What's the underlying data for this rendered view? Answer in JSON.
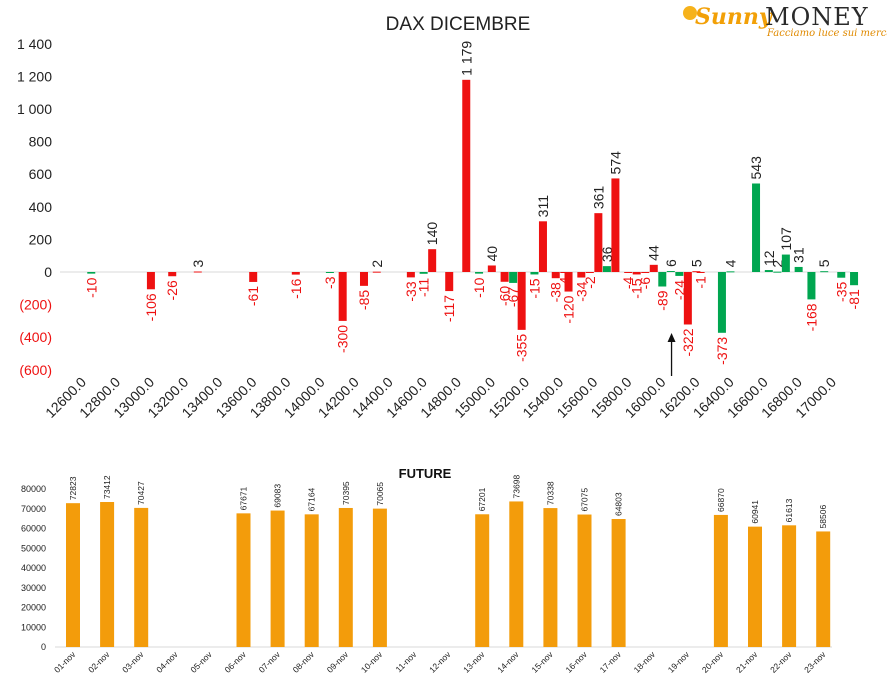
{
  "logo": {
    "brand_left": "Sunny",
    "brand_right": "MONEY",
    "tagline": "Facciamo luce sui mercati",
    "colors": {
      "orange": "#f2a007",
      "dark": "#2a2a2a"
    }
  },
  "chart_data": [
    {
      "type": "bar",
      "title": "DAX DICEMBRE",
      "ylim": [
        -600,
        1400
      ],
      "yticks": [
        -600,
        -400,
        -200,
        0,
        200,
        400,
        600,
        800,
        1000,
        1200,
        1400
      ],
      "ytick_labels": [
        "(600)",
        "(400)",
        "(200)",
        "0",
        "200",
        "400",
        "600",
        "800",
        "1 000",
        "1 200",
        "1 400"
      ],
      "x_range": [
        12600,
        17000
      ],
      "xticks": [
        12600,
        12800,
        13000,
        13200,
        13400,
        13600,
        13800,
        14000,
        14200,
        14400,
        14600,
        14800,
        15000,
        15200,
        15400,
        15600,
        15800,
        16000,
        16200,
        16400,
        16600,
        16800,
        17000
      ],
      "xtick_labels": [
        "12600.0",
        "12800.0",
        "13000.0",
        "13200.0",
        "13400.0",
        "13600.0",
        "13800.0",
        "14000.0",
        "14200.0",
        "14400.0",
        "14600.0",
        "14800.0",
        "15000.0",
        "15200.0",
        "15400.0",
        "15600.0",
        "15800.0",
        "16000.0",
        "16200.0",
        "16400.0",
        "16600.0",
        "16800.0",
        "17000.0"
      ],
      "grid": false,
      "colors": {
        "red": "#ee1111",
        "green": "#00a650",
        "label_neg": "#ee1111",
        "label_pos": "#222222"
      },
      "marker_arrow_at": 16000,
      "series": [
        {
          "values": [
            {
              "x": 12625,
              "v": -10,
              "c": "green",
              "label": "-10"
            },
            {
              "x": 12975,
              "v": -106,
              "c": "red",
              "label": "-106"
            },
            {
              "x": 13100,
              "v": -26,
              "c": "red",
              "label": "-26"
            },
            {
              "x": 13250,
              "v": 3,
              "c": "red",
              "label": "3"
            },
            {
              "x": 13575,
              "v": -61,
              "c": "red",
              "label": "-61"
            },
            {
              "x": 13825,
              "v": -16,
              "c": "red",
              "label": "-16"
            },
            {
              "x": 14025,
              "v": -3,
              "c": "green",
              "label": "-3"
            },
            {
              "x": 14100,
              "v": -300,
              "c": "red",
              "label": "-300"
            },
            {
              "x": 14225,
              "v": -85,
              "c": "red",
              "label": "-85"
            },
            {
              "x": 14300,
              "v": 2,
              "c": "red",
              "label": "2"
            },
            {
              "x": 14500,
              "v": -33,
              "c": "red",
              "label": "-33"
            },
            {
              "x": 14575,
              "v": -11,
              "c": "green",
              "label": "-11"
            },
            {
              "x": 14625,
              "v": 140,
              "c": "red",
              "label": "140"
            },
            {
              "x": 14725,
              "v": -117,
              "c": "red",
              "label": "-117"
            },
            {
              "x": 14825,
              "v": 1179,
              "c": "red",
              "label": "1 179"
            },
            {
              "x": 14900,
              "v": -10,
              "c": "green",
              "label": "-10"
            },
            {
              "x": 14975,
              "v": 40,
              "c": "red",
              "label": "40"
            },
            {
              "x": 15050,
              "v": -60,
              "c": "red",
              "label": "-60"
            },
            {
              "x": 15100,
              "v": -67,
              "c": "green",
              "label": "-67"
            },
            {
              "x": 15150,
              "v": -355,
              "c": "red",
              "label": "-355"
            },
            {
              "x": 15225,
              "v": -15,
              "c": "green",
              "label": "-15"
            },
            {
              "x": 15275,
              "v": 311,
              "c": "red",
              "label": "311"
            },
            {
              "x": 15350,
              "v": -38,
              "c": "red",
              "label": "-38"
            },
            {
              "x": 15400,
              "v": -4,
              "c": "red",
              "label": "-4"
            },
            {
              "x": 15425,
              "v": -120,
              "c": "red",
              "label": "-120"
            },
            {
              "x": 15500,
              "v": -34,
              "c": "red",
              "label": "-34"
            },
            {
              "x": 15550,
              "v": -2,
              "c": "red",
              "label": "-2"
            },
            {
              "x": 15600,
              "v": 361,
              "c": "red",
              "label": "361"
            },
            {
              "x": 15650,
              "v": 36,
              "c": "green",
              "label": "36"
            },
            {
              "x": 15700,
              "v": 574,
              "c": "red",
              "label": "574"
            },
            {
              "x": 15775,
              "v": -4,
              "c": "red",
              "label": "-4"
            },
            {
              "x": 15825,
              "v": -15,
              "c": "red",
              "label": "-15"
            },
            {
              "x": 15875,
              "v": -6,
              "c": "red",
              "label": "-6"
            },
            {
              "x": 15925,
              "v": 44,
              "c": "red",
              "label": "44"
            },
            {
              "x": 15975,
              "v": -89,
              "c": "green",
              "label": "-89"
            },
            {
              "x": 16025,
              "v": 6,
              "c": "green",
              "label": "6"
            },
            {
              "x": 16075,
              "v": -24,
              "c": "green",
              "label": "-24"
            },
            {
              "x": 16125,
              "v": -322,
              "c": "red",
              "label": "-322"
            },
            {
              "x": 16175,
              "v": 5,
              "c": "red",
              "label": "5"
            },
            {
              "x": 16200,
              "v": -1,
              "c": "red",
              "label": "-1"
            },
            {
              "x": 16325,
              "v": -373,
              "c": "green",
              "label": "-373"
            },
            {
              "x": 16375,
              "v": 4,
              "c": "green",
              "label": "4"
            },
            {
              "x": 16525,
              "v": 543,
              "c": "green",
              "label": "543"
            },
            {
              "x": 16600,
              "v": 12,
              "c": "green",
              "label": "12"
            },
            {
              "x": 16650,
              "v": 2,
              "c": "green",
              "label": "2"
            },
            {
              "x": 16700,
              "v": 107,
              "c": "green",
              "label": "107"
            },
            {
              "x": 16775,
              "v": 31,
              "c": "green",
              "label": "31"
            },
            {
              "x": 16850,
              "v": -168,
              "c": "green",
              "label": "-168"
            },
            {
              "x": 16925,
              "v": 5,
              "c": "green",
              "label": "5"
            },
            {
              "x": 17025,
              "v": -35,
              "c": "green",
              "label": "-35"
            },
            {
              "x": 17100,
              "v": -81,
              "c": "green",
              "label": "-81"
            }
          ]
        }
      ]
    },
    {
      "type": "bar",
      "title": "FUTURE",
      "ylim": [
        0,
        80000
      ],
      "yticks": [
        0,
        10000,
        20000,
        30000,
        40000,
        50000,
        60000,
        70000,
        80000
      ],
      "grid": false,
      "bar_color": "#f39c0b",
      "categories": [
        "01-nov",
        "02-nov",
        "03-nov",
        "04-nov",
        "05-nov",
        "06-nov",
        "07-nov",
        "08-nov",
        "09-nov",
        "10-nov",
        "11-nov",
        "12-nov",
        "13-nov",
        "14-nov",
        "15-nov",
        "16-nov",
        "17-nov",
        "18-nov",
        "19-nov",
        "20-nov",
        "21-nov",
        "22-nov",
        "23-nov"
      ],
      "values": [
        72823,
        73412,
        70427,
        null,
        null,
        67671,
        69083,
        67164,
        70395,
        70065,
        null,
        null,
        67201,
        73698,
        70338,
        67075,
        64803,
        null,
        null,
        66870,
        60941,
        61613,
        58506
      ]
    }
  ]
}
